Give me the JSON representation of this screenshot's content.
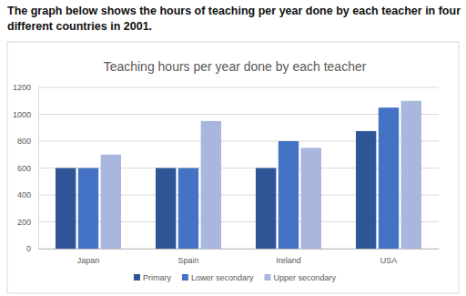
{
  "header": {
    "text": "The graph below shows the hours of teaching per year done by each teacher in four different countries in 2001."
  },
  "chart_data": {
    "type": "bar",
    "title": "Teaching hours per year done by each teacher",
    "categories": [
      "Japan",
      "Spain",
      "Ireland",
      "USA"
    ],
    "series": [
      {
        "name": "Primary",
        "color": "#2f5597",
        "values": [
          600,
          600,
          600,
          875
        ]
      },
      {
        "name": "Lower secondary",
        "color": "#4472c4",
        "values": [
          600,
          600,
          800,
          1050
        ]
      },
      {
        "name": "Upper secondary",
        "color": "#a9b6de",
        "values": [
          700,
          950,
          750,
          1100
        ]
      }
    ],
    "ylim": [
      0,
      1200
    ],
    "yticks": [
      0,
      200,
      400,
      600,
      800,
      1000,
      1200
    ],
    "grid": true,
    "legend": "bottom"
  }
}
